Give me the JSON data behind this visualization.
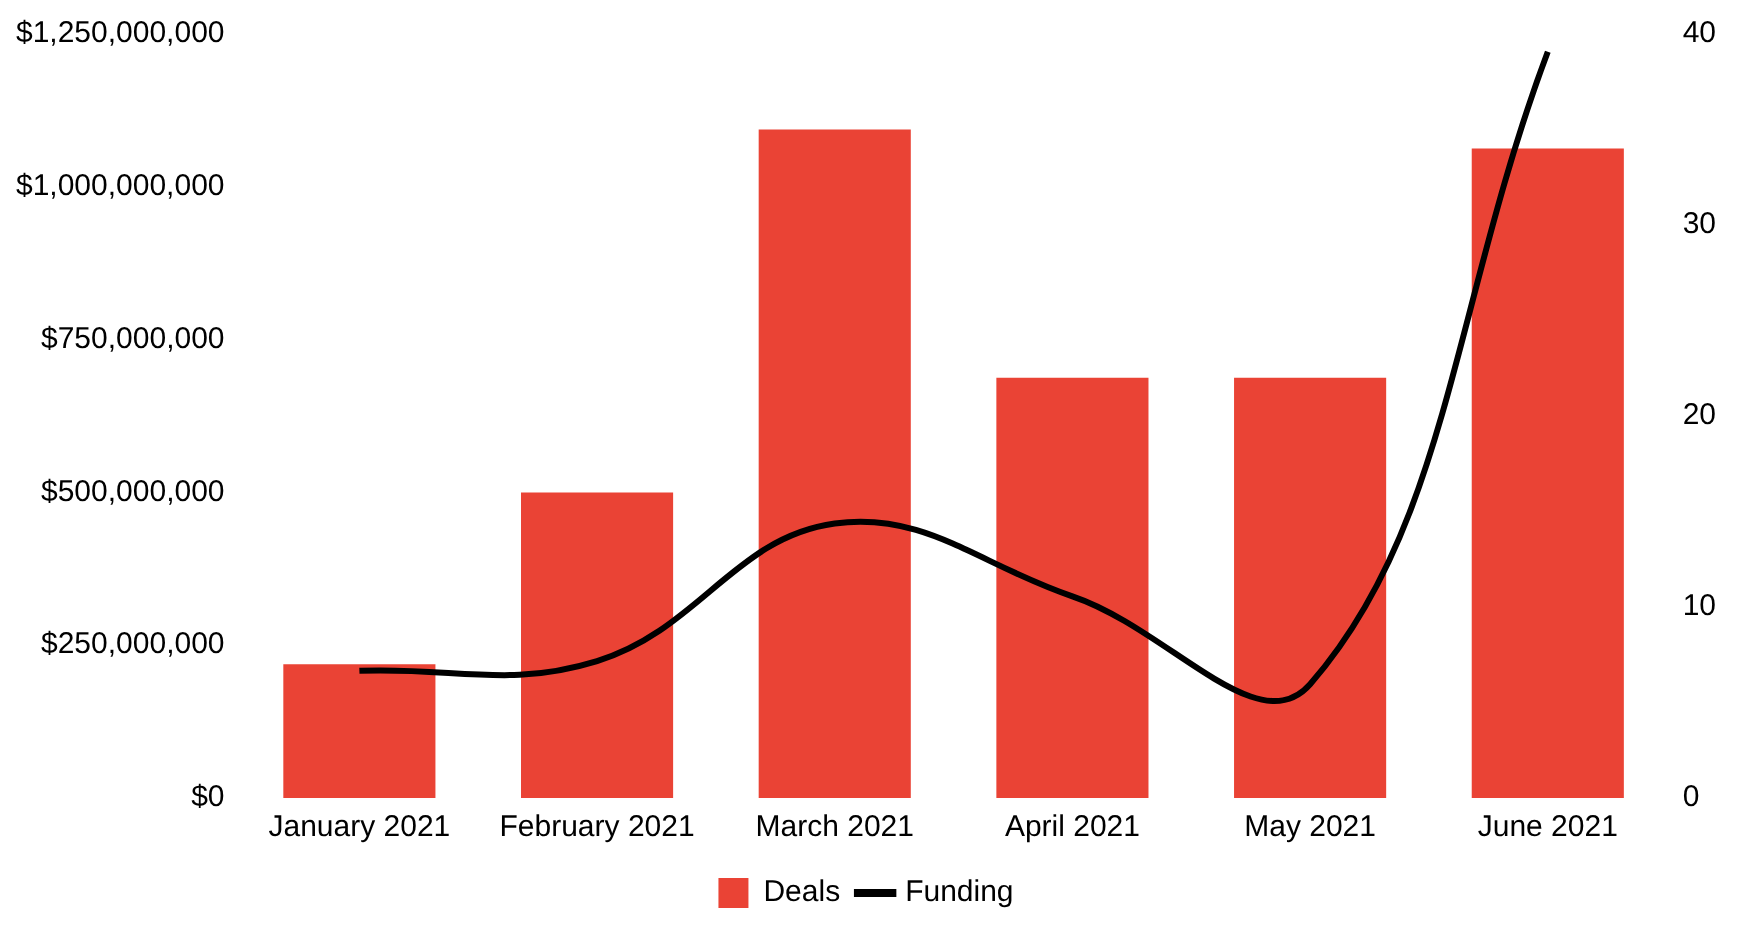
{
  "chart_data": {
    "type": "bar",
    "categories": [
      "January 2021",
      "February 2021",
      "March 2021",
      "April 2021",
      "May 2021",
      "June 2021"
    ],
    "series": [
      {
        "name": "Deals",
        "axis": "y2",
        "color": "#ea4335",
        "values": [
          7,
          16,
          35,
          22,
          22,
          34
        ]
      },
      {
        "name": "Funding",
        "type": "line",
        "axis": "y",
        "color": "#000000",
        "values": [
          208000000,
          224000000,
          449000000,
          330000000,
          186000000,
          1221000000
        ]
      }
    ],
    "ylim": [
      0,
      1250000000
    ],
    "yticks": [
      {
        "value": 0,
        "label": "$0"
      },
      {
        "value": 250000000,
        "label": "$250,000,000"
      },
      {
        "value": 500000000,
        "label": "$500,000,000"
      },
      {
        "value": 750000000,
        "label": "$750,000,000"
      },
      {
        "value": 1000000000,
        "label": "$1,000,000,000"
      },
      {
        "value": 1250000000,
        "label": "$1,250,000,000"
      }
    ],
    "y2lim": [
      0,
      40
    ],
    "y2ticks": [
      0,
      10,
      20,
      30,
      40
    ],
    "grid": false,
    "legend": "bottom",
    "marker": "none"
  }
}
